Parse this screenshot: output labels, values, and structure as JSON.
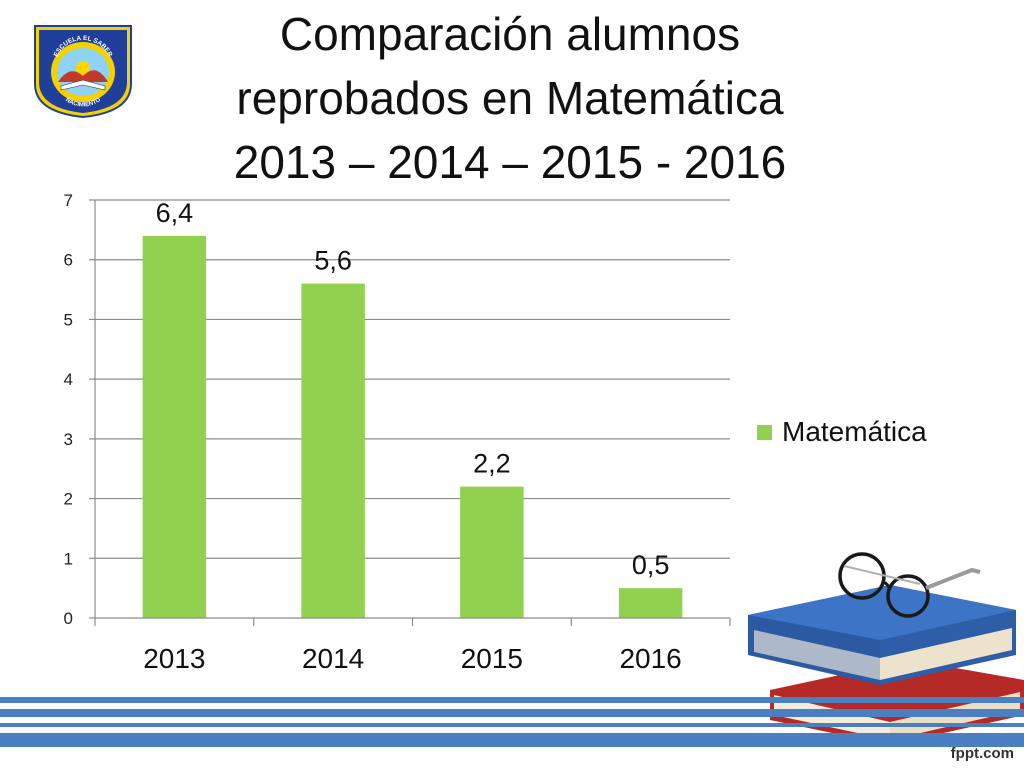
{
  "slide": {
    "title_lines": [
      "Comparación alumnos",
      "reprobados en Matemática",
      "2013 – 2014 – 2015 - 2016"
    ],
    "logo_text_top": "ESCUELA EL SABER",
    "logo_text_bottom": "NACIMIENTO",
    "footer_brand": "fppt.com"
  },
  "colors": {
    "bar": "#92d050",
    "grid": "#8c8c8c",
    "axis": "#8c8c8c",
    "stripe_blue": "#4a7fc1",
    "logo_blue": "#1f3f9a",
    "logo_yellow": "#f3d200"
  },
  "chart_data": {
    "type": "bar",
    "categories": [
      "2013",
      "2014",
      "2015",
      "2016"
    ],
    "series": [
      {
        "name": "Matemática",
        "values": [
          6.4,
          5.6,
          2.2,
          0.5
        ],
        "labels": [
          "6,4",
          "5,6",
          "2,2",
          "0,5"
        ]
      }
    ],
    "yticks": [
      "0",
      "1",
      "2",
      "3",
      "4",
      "5",
      "6",
      "7"
    ],
    "ylim": [
      0,
      7
    ],
    "grid": true,
    "legend": "right"
  },
  "decorations": [
    "school-logo",
    "books-with-glasses-illustration",
    "footer-stripes"
  ]
}
